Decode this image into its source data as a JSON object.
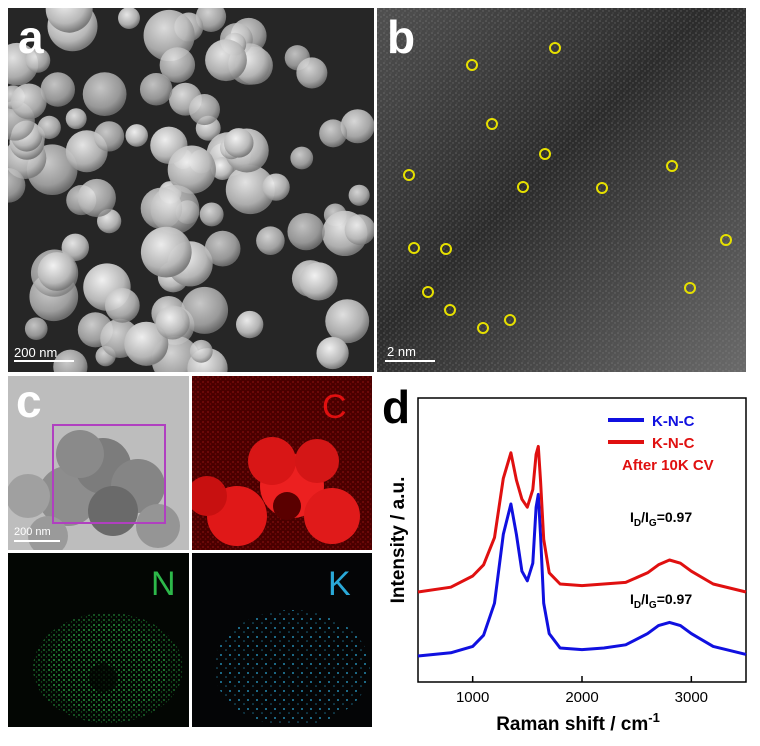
{
  "panels": {
    "a": {
      "letter": "a",
      "scalebar": "200 nm"
    },
    "b": {
      "letter": "b",
      "scalebar": "2 nm",
      "marker_color": "#e6e000"
    },
    "c": {
      "letter": "c",
      "scalebar": "200 nm",
      "maps": {
        "c": "C",
        "n": "N",
        "k": "K"
      },
      "colors": {
        "c": "#e01010",
        "n": "#2db84a",
        "k": "#2aa9d8",
        "box": "#b040c0"
      }
    },
    "d": {
      "letter": "d"
    }
  },
  "chart_data": {
    "type": "line",
    "xlabel_main": "Raman shift / cm",
    "xlabel_sup": "-1",
    "ylabel": "Intensity / a.u.",
    "xlim": [
      500,
      3500
    ],
    "xticks": [
      1000,
      2000,
      3000
    ],
    "tick_labels": [
      "1000",
      "2000",
      "3000"
    ],
    "y_axis_ticks": false,
    "legend": [
      {
        "label": "K-N-C",
        "color": "#1010e0"
      },
      {
        "label": "K-N-C",
        "color": "#e01010",
        "sub": "After 10K CV"
      }
    ],
    "annotations": [
      {
        "series": "K-N-C After 10K CV",
        "ratio_prefix": "I",
        "ratio_sub1": "D",
        "ratio_mid": "/I",
        "ratio_sub2": "G",
        "ratio_value": "=0.97"
      },
      {
        "series": "K-N-C",
        "ratio_prefix": "I",
        "ratio_sub1": "D",
        "ratio_mid": "/I",
        "ratio_sub2": "G",
        "ratio_value": "=0.97"
      }
    ],
    "series": [
      {
        "color": "#1010e0",
        "x": [
          500,
          800,
          1000,
          1100,
          1200,
          1280,
          1350,
          1400,
          1450,
          1500,
          1550,
          1580,
          1600,
          1620,
          1650,
          1700,
          1800,
          2000,
          2200,
          2400,
          2600,
          2700,
          2800,
          2900,
          3000,
          3200,
          3500
        ],
        "y": [
          0.0,
          0.02,
          0.06,
          0.13,
          0.33,
          0.76,
          0.95,
          0.76,
          0.53,
          0.47,
          0.58,
          0.93,
          1.01,
          0.76,
          0.33,
          0.14,
          0.05,
          0.04,
          0.05,
          0.07,
          0.14,
          0.19,
          0.21,
          0.19,
          0.14,
          0.06,
          0.01
        ]
      },
      {
        "color": "#e01010",
        "x": [
          500,
          800,
          1000,
          1100,
          1200,
          1280,
          1350,
          1400,
          1450,
          1500,
          1550,
          1580,
          1600,
          1620,
          1650,
          1700,
          1800,
          2000,
          2200,
          2400,
          2600,
          2700,
          2800,
          2900,
          3000,
          3200,
          3500
        ],
        "y": [
          0.4,
          0.43,
          0.5,
          0.57,
          0.74,
          1.11,
          1.27,
          1.1,
          0.98,
          0.93,
          1.04,
          1.26,
          1.31,
          1.1,
          0.73,
          0.52,
          0.45,
          0.44,
          0.45,
          0.46,
          0.52,
          0.57,
          0.6,
          0.58,
          0.53,
          0.45,
          0.4
        ]
      }
    ]
  }
}
